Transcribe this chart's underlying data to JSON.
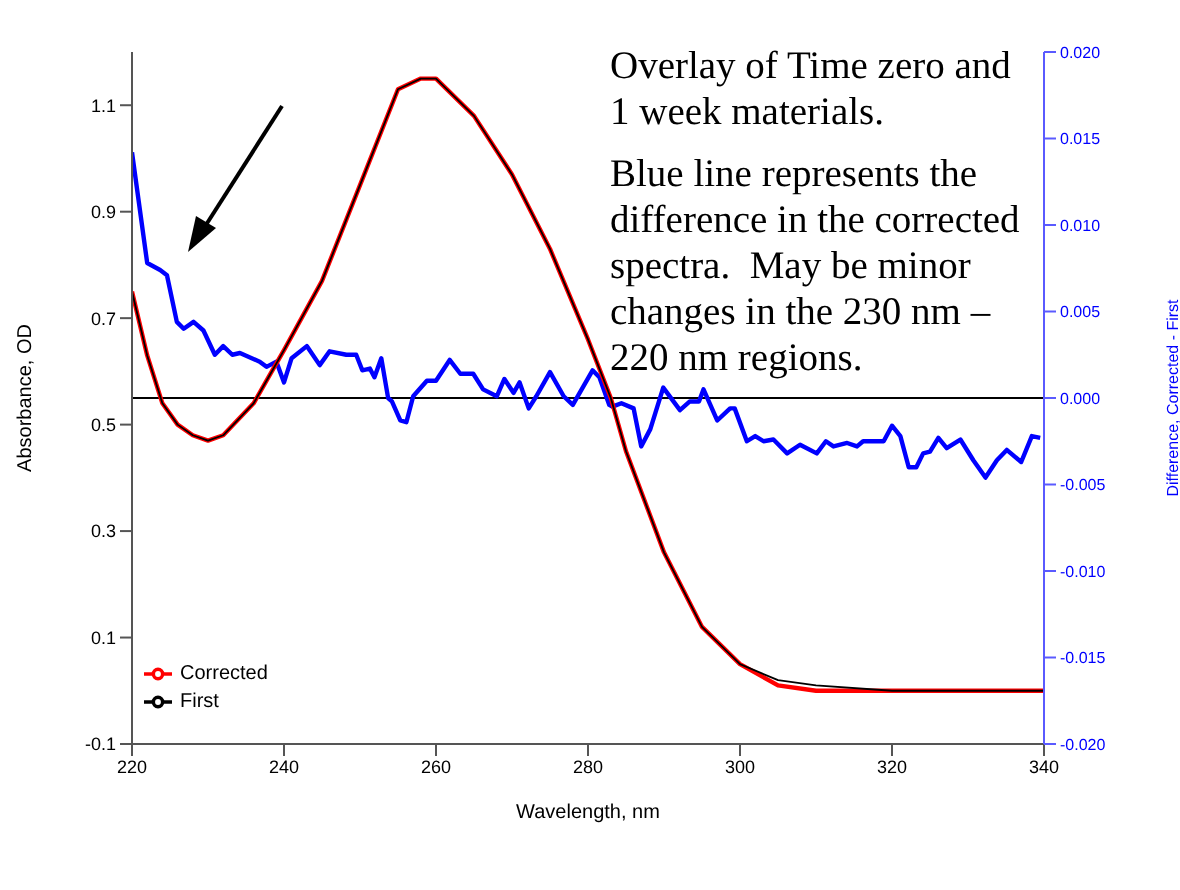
{
  "chart_data": {
    "type": "line",
    "xlabel": "Wavelength, nm",
    "ylabel": "Absorbance, OD",
    "y2label": "Difference, Corrected - First",
    "xlim": [
      220,
      340
    ],
    "xticks": [
      220,
      240,
      260,
      280,
      300,
      320,
      340
    ],
    "ylim": [
      -0.1,
      1.2
    ],
    "yticks": [
      -0.1,
      0.1,
      0.3,
      0.5,
      0.7,
      0.9,
      1.1
    ],
    "y2lim": [
      -0.02,
      0.02
    ],
    "y2ticks": [
      {
        "value": -0.02,
        "label": "-0.020"
      },
      {
        "value": -0.015,
        "label": "-0.015"
      },
      {
        "value": -0.01,
        "label": "-0.010"
      },
      {
        "value": -0.005,
        "label": "-0.005"
      },
      {
        "value": 0,
        "label": "0.000"
      },
      {
        "value": 0.005,
        "label": "0.005"
      },
      {
        "value": 0.01,
        "label": "0.010"
      },
      {
        "value": 0.015,
        "label": "0.015"
      },
      {
        "value": 0.02,
        "label": "0.020"
      }
    ],
    "legend": "bottom left",
    "marker": "none",
    "line_style": "solid",
    "ref_lines": [
      {
        "axis": "y2",
        "value": 0,
        "color": "#000000"
      }
    ],
    "annotations": [
      "Overlay of Time zero and 1 week materials.",
      "Blue line represents the difference in the corrected spectra.  May be minor changes in the 230 nm – 220 nm regions."
    ],
    "series": [
      {
        "name": "First",
        "color": "#000000",
        "x": [
          220,
          222,
          224,
          226,
          228,
          230,
          232,
          234,
          236,
          238,
          240,
          245,
          250,
          255,
          258,
          260,
          265,
          270,
          275,
          280,
          283,
          285,
          290,
          295,
          300,
          305,
          310,
          320,
          330,
          340
        ],
        "values": [
          0.75,
          0.63,
          0.54,
          0.5,
          0.48,
          0.47,
          0.48,
          0.51,
          0.54,
          0.59,
          0.64,
          0.77,
          0.95,
          1.13,
          1.15,
          1.15,
          1.08,
          0.97,
          0.83,
          0.66,
          0.55,
          0.45,
          0.26,
          0.12,
          0.05,
          0.02,
          0.01,
          0.0,
          0.0,
          0.0
        ]
      },
      {
        "name": "Corrected",
        "color": "#ff0000",
        "x": [
          220,
          222,
          224,
          226,
          228,
          230,
          232,
          234,
          236,
          238,
          240,
          245,
          250,
          255,
          258,
          260,
          265,
          270,
          275,
          280,
          283,
          285,
          290,
          295,
          300,
          305,
          310,
          320,
          330,
          340
        ],
        "values": [
          0.75,
          0.63,
          0.54,
          0.5,
          0.48,
          0.47,
          0.48,
          0.51,
          0.54,
          0.59,
          0.64,
          0.77,
          0.95,
          1.13,
          1.15,
          1.15,
          1.08,
          0.97,
          0.83,
          0.66,
          0.55,
          0.45,
          0.26,
          0.12,
          0.05,
          0.01,
          0.0,
          0.0,
          0.0,
          0.0
        ]
      },
      {
        "color": "#0000ff",
        "axis": "y2",
        "x": [
          220,
          222,
          223.7,
          224.6,
          225.9,
          226.8,
          228.1,
          229.4,
          230.9,
          232,
          233.2,
          234.2,
          236.8,
          237.7,
          239,
          240,
          241,
          243,
          244.7,
          246,
          248.2,
          249.5,
          250.3,
          251.3,
          251.9,
          252.8,
          253.7,
          254.2,
          255.3,
          256.1,
          257,
          258.8,
          260,
          261.8,
          263.2,
          264.9,
          266.2,
          268,
          269,
          270.2,
          271,
          272.2,
          273.2,
          275,
          276.8,
          278,
          280.6,
          281.5,
          282.8,
          283.2,
          284.4,
          286,
          287,
          288.2,
          289.9,
          292.1,
          293.4,
          294.6,
          295.2,
          297,
          298.7,
          299.3,
          300.9,
          302,
          303.1,
          304.4,
          306.2,
          307.9,
          310.1,
          311.3,
          312.3,
          314.1,
          315.4,
          316.2,
          318.9,
          320,
          321.1,
          322.2,
          323.2,
          324.1,
          325,
          326.1,
          327.2,
          329,
          330.7,
          332.3,
          333.8,
          335.1,
          337,
          338.4,
          339.5
        ],
        "values": [
          0.0142,
          0.0078,
          0.0074,
          0.0071,
          0.0044,
          0.004,
          0.0044,
          0.0039,
          0.0025,
          0.003,
          0.0025,
          0.0026,
          0.0021,
          0.0018,
          0.0021,
          0.0009,
          0.0023,
          0.003,
          0.0019,
          0.0027,
          0.0025,
          0.0025,
          0.0016,
          0.0017,
          0.0012,
          0.0023,
          0.0,
          -0.0002,
          -0.0013,
          -0.0014,
          0.0001,
          0.001,
          0.001,
          0.0022,
          0.0014,
          0.0014,
          0.0005,
          0.0001,
          0.0011,
          0.0003,
          0.0009,
          -0.0006,
          0.0001,
          0.0015,
          0.0001,
          -0.0004,
          0.0016,
          0.0012,
          -0.0004,
          -0.0005,
          -0.0003,
          -0.0006,
          -0.0028,
          -0.0018,
          0.0006,
          -0.0007,
          -0.0002,
          -0.0002,
          0.0005,
          -0.0013,
          -0.0006,
          -0.0006,
          -0.0025,
          -0.0022,
          -0.0025,
          -0.0024,
          -0.0032,
          -0.0027,
          -0.0032,
          -0.0025,
          -0.0028,
          -0.0026,
          -0.0028,
          -0.0025,
          -0.0025,
          -0.0016,
          -0.0022,
          -0.004,
          -0.004,
          -0.0032,
          -0.0031,
          -0.0023,
          -0.0029,
          -0.0024,
          -0.0036,
          -0.0046,
          -0.0036,
          -0.003,
          -0.0037,
          -0.0022,
          -0.0023
        ]
      }
    ]
  }
}
